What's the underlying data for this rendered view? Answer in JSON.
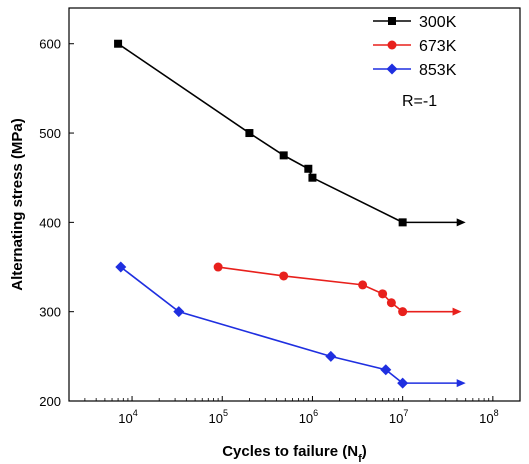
{
  "chart_data": {
    "type": "line",
    "xlabel": "Cycles to failure (N",
    "xlabel_subscript": "f",
    "xlabel_suffix": ")",
    "ylabel": "Alternating stress (MPa)",
    "xscale": "log",
    "xlim": [
      2000,
      200000000
    ],
    "ylim": [
      200,
      640
    ],
    "x_ticks": [
      {
        "value": 10000,
        "base": "10",
        "exp": "4"
      },
      {
        "value": 100000,
        "base": "10",
        "exp": "5"
      },
      {
        "value": 1000000,
        "base": "10",
        "exp": "6"
      },
      {
        "value": 10000000,
        "base": "10",
        "exp": "7"
      },
      {
        "value": 100000000,
        "base": "10",
        "exp": "8"
      }
    ],
    "y_ticks": [
      200,
      300,
      400,
      500,
      600
    ],
    "legend_position": "top-right",
    "annotation": "R=-1",
    "series": [
      {
        "name": "300K",
        "color": "#000000",
        "marker": "square",
        "x": [
          7000,
          200000,
          480000,
          900000,
          1000000,
          10000000
        ],
        "y": [
          600,
          500,
          475,
          460,
          450,
          400
        ],
        "runout_arrow_to": 50000000
      },
      {
        "name": "673K",
        "color": "#e8201c",
        "marker": "circle",
        "x": [
          90000,
          480000,
          3600000,
          6000000,
          7500000,
          10000000
        ],
        "y": [
          350,
          340,
          330,
          320,
          310,
          300
        ],
        "runout_arrow_to": 45000000
      },
      {
        "name": "853K",
        "color": "#1f2fe0",
        "marker": "diamond",
        "x": [
          7500,
          33000,
          1600000,
          6500000,
          10000000
        ],
        "y": [
          350,
          300,
          250,
          235,
          220
        ],
        "runout_arrow_to": 50000000
      }
    ]
  }
}
